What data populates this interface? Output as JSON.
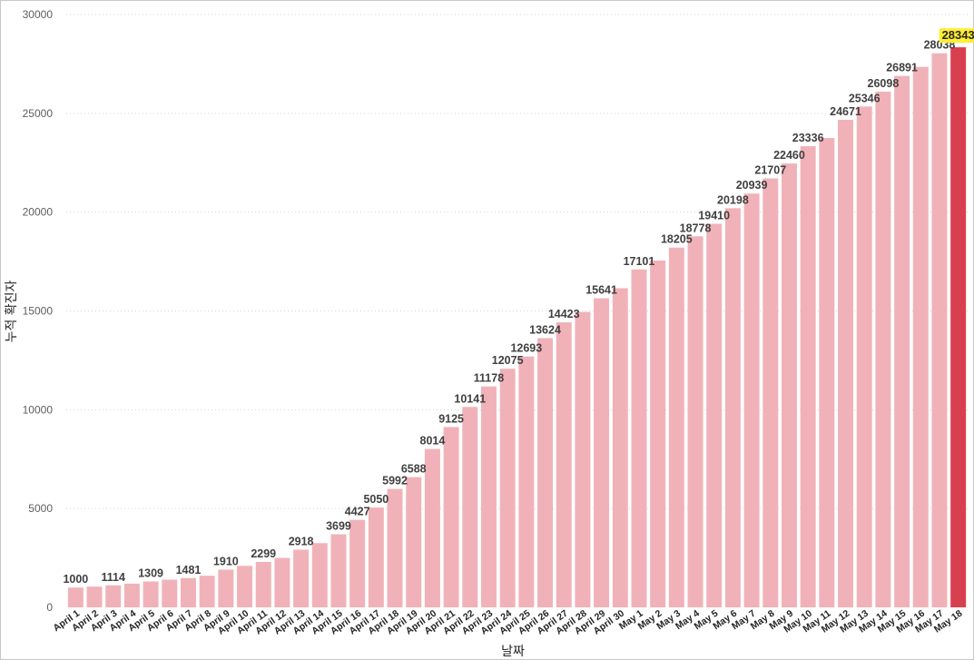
{
  "chart_data": {
    "type": "bar",
    "title": "",
    "xlabel": "날짜",
    "ylabel": "누적 확진자",
    "ylim": [
      0,
      30000
    ],
    "yticks": [
      0,
      5000,
      10000,
      15000,
      20000,
      25000,
      30000
    ],
    "grid": true,
    "colors": {
      "bar": "#f0b2b8",
      "highlight": "#d9404f",
      "highlight_label_bg": "#ffee33"
    },
    "categories": [
      "April 1",
      "April 2",
      "April 3",
      "April 4",
      "April 5",
      "April 6",
      "April 7",
      "April 8",
      "April 9",
      "April 10",
      "April 11",
      "April 12",
      "April 13",
      "April 14",
      "April 15",
      "April 16",
      "April 17",
      "April 18",
      "April 19",
      "April 20",
      "April 21",
      "April 22",
      "April 23",
      "April 24",
      "April 25",
      "April 26",
      "April 27",
      "April 28",
      "April 29",
      "April 30",
      "May 1",
      "May 2",
      "May 3",
      "May 4",
      "May 5",
      "May 6",
      "May 7",
      "May 8",
      "May 9",
      "May 10",
      "May 11",
      "May 12",
      "May 13",
      "May 14",
      "May 15",
      "May 16",
      "May 17",
      "May 18"
    ],
    "values": [
      1000,
      1050,
      1114,
      1200,
      1309,
      1400,
      1481,
      1600,
      1910,
      2100,
      2299,
      2500,
      2918,
      3250,
      3699,
      4427,
      5050,
      5992,
      6588,
      8014,
      9125,
      10141,
      11178,
      12075,
      12693,
      13624,
      14423,
      14950,
      15641,
      16150,
      17101,
      17550,
      18205,
      18778,
      19410,
      20198,
      20939,
      21707,
      22460,
      23336,
      23750,
      24671,
      25346,
      26098,
      26891,
      27350,
      28038,
      28343
    ],
    "labels": [
      "1000",
      "",
      "1114",
      "",
      "1309",
      "",
      "1481",
      "",
      "1910",
      "",
      "2299",
      "",
      "2918",
      "",
      "3699",
      "4427",
      "5050",
      "5992",
      "6588",
      "8014",
      "9125",
      "10141",
      "11178",
      "12075",
      "12693",
      "13624",
      "14423",
      "",
      "15641",
      "",
      "17101",
      "",
      "18205",
      "18778",
      "19410",
      "20198",
      "20939",
      "21707",
      "22460",
      "23336",
      "",
      "24671",
      "25346",
      "26098",
      "26891",
      "",
      "28038",
      "28343"
    ],
    "highlight_index": 47
  }
}
